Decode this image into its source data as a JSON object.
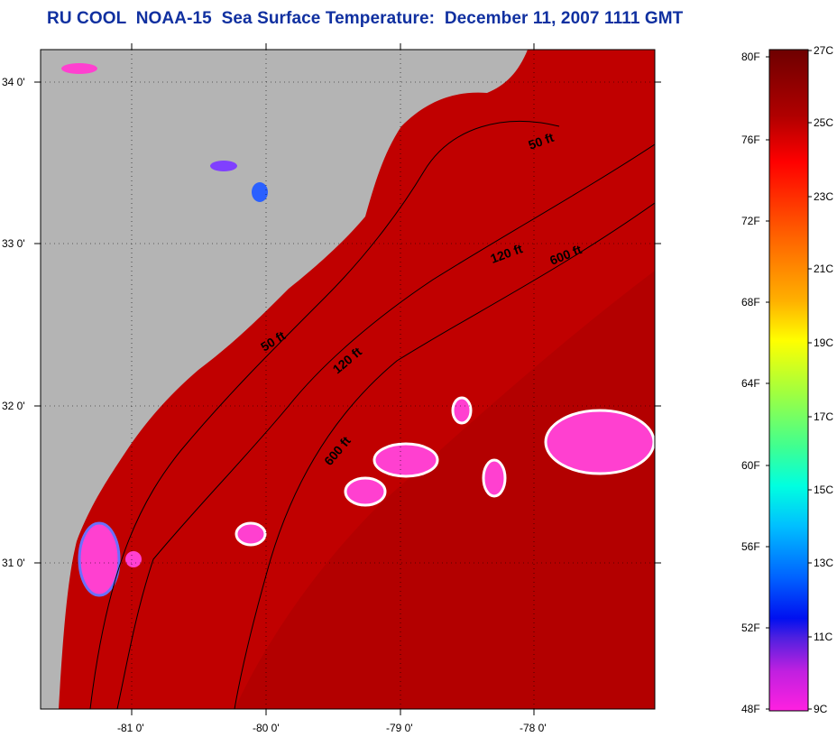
{
  "header": {
    "title": "RU COOL  NOAA-15  Sea Surface Temperature:  December 11, 2007 1111 GMT"
  },
  "map": {
    "lat_labels": [
      "34 0'",
      "33 0'",
      "32 0'",
      "31 0'"
    ],
    "lon_labels": [
      "-81 0'",
      "-80 0'",
      "-79 0'",
      "-78 0'"
    ],
    "contour_labels": [
      "50 ft",
      "120 ft",
      "600 ft",
      "50 ft",
      "120 ft",
      "600 ft"
    ]
  },
  "colorbar": {
    "fahrenheit_labels": [
      "80F",
      "76F",
      "72F",
      "68F",
      "64F",
      "60F",
      "56F",
      "52F",
      "48F"
    ],
    "celsius_labels": [
      "27C",
      "25C",
      "23C",
      "21C",
      "19C",
      "17C",
      "15C",
      "13C",
      "11C",
      "9C"
    ],
    "colors": {
      "27C": "#7a0000",
      "25C": "#e80000",
      "23C": "#ff7800",
      "21C": "#ffff00",
      "19C": "#90ff40",
      "17C": "#00ffc0",
      "15C": "#00b0ff",
      "13C": "#0040ff",
      "11C": "#6020e0",
      "9C": "#ff20e0"
    }
  }
}
